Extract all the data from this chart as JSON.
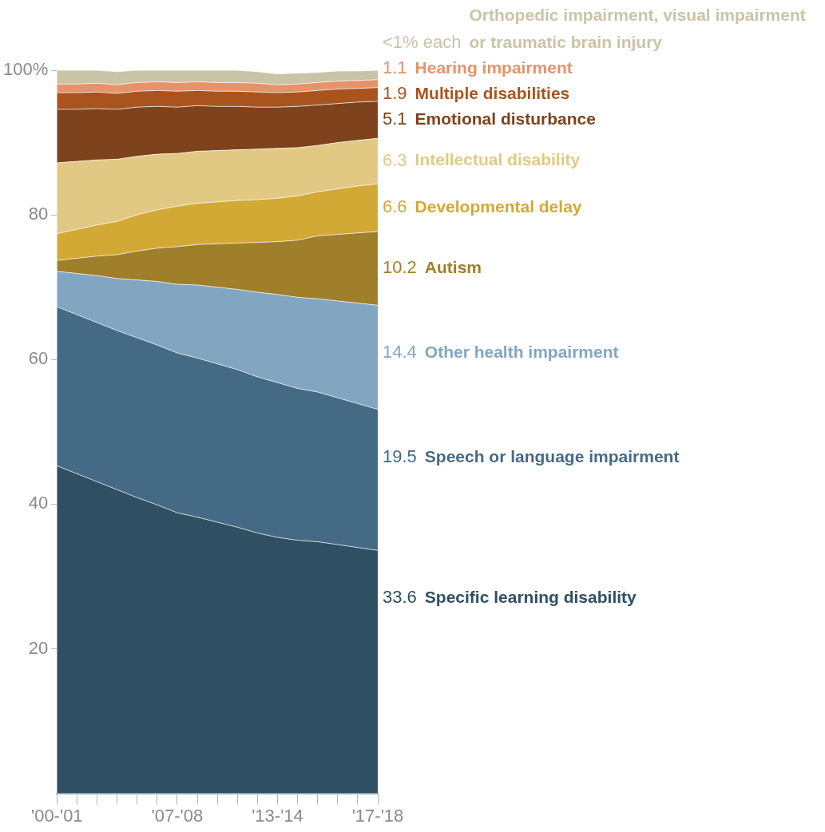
{
  "chart_data": {
    "type": "area",
    "stacked": true,
    "legend": false,
    "grid": false,
    "categories": [
      "'00-'01",
      null,
      null,
      null,
      null,
      null,
      "'07-'08",
      null,
      null,
      null,
      null,
      "'13-'14",
      null,
      null,
      null,
      null,
      "'17-'18"
    ],
    "ylim": [
      0,
      100
    ],
    "yticks": [
      20,
      40,
      60,
      80,
      {
        "value": 100,
        "label": "100%"
      }
    ],
    "series": [
      {
        "name": "Specific learning disability",
        "color": "#2f4f63",
        "values": [
          45.3,
          44.2,
          43.1,
          42.0,
          40.9,
          39.9,
          38.8,
          38.2,
          37.5,
          36.8,
          36.0,
          35.4,
          35.0,
          34.8,
          34.4,
          34.0,
          33.6
        ],
        "value_labels": [
          null,
          null,
          null,
          null,
          null,
          null,
          null,
          null,
          null,
          null,
          null,
          null,
          null,
          null,
          null,
          null,
          "33.6"
        ]
      },
      {
        "name": "Speech or language impairment",
        "color": "#456a85",
        "values": [
          22.0,
          22.0,
          22.0,
          22.0,
          22.1,
          22.1,
          22.1,
          22.0,
          21.9,
          21.8,
          21.6,
          21.4,
          21.0,
          20.7,
          20.3,
          19.9,
          19.5
        ],
        "value_labels": [
          null,
          null,
          null,
          null,
          null,
          null,
          null,
          null,
          null,
          null,
          null,
          null,
          null,
          null,
          null,
          null,
          "19.5"
        ]
      },
      {
        "name": "Other health impairment",
        "color": "#82a6c1",
        "values": [
          4.9,
          5.7,
          6.5,
          7.2,
          8.0,
          8.8,
          9.5,
          10.1,
          10.6,
          11.1,
          11.7,
          12.2,
          12.6,
          12.9,
          13.4,
          13.9,
          14.4
        ],
        "value_labels": [
          null,
          null,
          null,
          null,
          null,
          null,
          null,
          null,
          null,
          null,
          null,
          null,
          null,
          null,
          null,
          null,
          "14.4"
        ]
      },
      {
        "name": "Autism",
        "color": "#a07f2a",
        "values": [
          1.5,
          2.1,
          2.7,
          3.3,
          4.0,
          4.6,
          5.2,
          5.6,
          6.0,
          6.4,
          6.9,
          7.3,
          7.9,
          8.7,
          9.2,
          9.7,
          10.2
        ],
        "value_labels": [
          null,
          null,
          null,
          null,
          null,
          null,
          null,
          null,
          null,
          null,
          null,
          null,
          null,
          null,
          null,
          null,
          "10.2"
        ]
      },
      {
        "name": "Developmental delay",
        "color": "#d3a935",
        "values": [
          3.7,
          4.0,
          4.3,
          4.6,
          5.0,
          5.3,
          5.6,
          5.7,
          5.8,
          5.9,
          5.9,
          6.0,
          6.1,
          6.1,
          6.3,
          6.5,
          6.6
        ],
        "value_labels": [
          null,
          null,
          null,
          null,
          null,
          null,
          null,
          null,
          null,
          null,
          null,
          null,
          null,
          null,
          null,
          null,
          "6.6"
        ]
      },
      {
        "name": "Intellectual disability",
        "color": "#e2c983",
        "values": [
          9.8,
          9.4,
          9.0,
          8.6,
          8.1,
          7.7,
          7.3,
          7.2,
          7.1,
          7.0,
          7.0,
          6.9,
          6.7,
          6.4,
          6.4,
          6.3,
          6.3
        ],
        "value_labels": [
          null,
          null,
          null,
          null,
          null,
          null,
          null,
          null,
          null,
          null,
          null,
          null,
          null,
          null,
          null,
          null,
          "6.3"
        ]
      },
      {
        "name": "Emotional disturbance",
        "color": "#7e421c",
        "values": [
          7.4,
          7.2,
          7.1,
          6.9,
          6.8,
          6.6,
          6.4,
          6.3,
          6.1,
          6.0,
          5.8,
          5.7,
          5.7,
          5.6,
          5.4,
          5.3,
          5.1
        ],
        "value_labels": [
          null,
          null,
          null,
          null,
          null,
          null,
          null,
          null,
          null,
          null,
          null,
          null,
          null,
          null,
          null,
          null,
          "5.1"
        ]
      },
      {
        "name": "Multiple disabilities",
        "color": "#a9541f",
        "values": [
          2.3,
          2.3,
          2.3,
          2.2,
          2.2,
          2.2,
          2.2,
          2.1,
          2.1,
          2.1,
          2.1,
          2.0,
          2.0,
          2.0,
          2.0,
          1.9,
          1.9
        ],
        "value_labels": [
          null,
          null,
          null,
          null,
          null,
          null,
          null,
          null,
          null,
          null,
          null,
          null,
          null,
          null,
          null,
          null,
          "1.9"
        ]
      },
      {
        "name": "Hearing impairment",
        "color": "#e6926a",
        "values": [
          1.2,
          1.2,
          1.2,
          1.2,
          1.2,
          1.2,
          1.2,
          1.2,
          1.2,
          1.2,
          1.2,
          1.1,
          1.1,
          1.1,
          1.1,
          1.1,
          1.1
        ],
        "value_labels": [
          null,
          null,
          null,
          null,
          null,
          null,
          null,
          null,
          null,
          null,
          null,
          null,
          null,
          null,
          null,
          null,
          "1.1"
        ]
      },
      {
        "name": "Orthopedic impairment, visual impairment or traumatic brain injury",
        "color": "#c9c4a6",
        "values": [
          1.9,
          1.9,
          1.8,
          1.8,
          1.7,
          1.6,
          1.7,
          1.6,
          1.7,
          1.7,
          1.6,
          1.5,
          1.5,
          1.4,
          1.4,
          1.3,
          1.3
        ],
        "value_labels": [
          null,
          null,
          null,
          null,
          null,
          null,
          null,
          null,
          null,
          null,
          null,
          null,
          null,
          null,
          null,
          null,
          "<1% each"
        ]
      }
    ]
  }
}
